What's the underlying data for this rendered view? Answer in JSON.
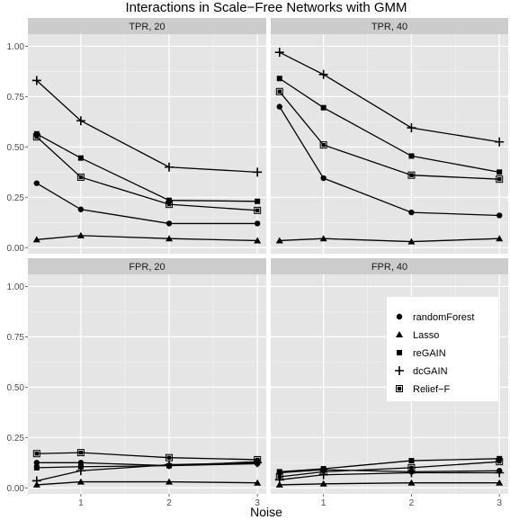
{
  "chart_data": {
    "type": "line",
    "title": "Interactions in Scale−Free Networks with GMM",
    "xlabel": "Noise",
    "ylabel": "",
    "x": [
      0.5,
      1,
      2,
      3
    ],
    "xticks": [
      "1",
      "2",
      "3"
    ],
    "yticks": [
      "0.00",
      "0.25",
      "0.50",
      "0.75",
      "1.00"
    ],
    "xlim": [
      0.4,
      3.1
    ],
    "ylim": [
      -0.03,
      1.06
    ],
    "grid": true,
    "legend_position": "inside-right",
    "legend": [
      {
        "name": "randomForest",
        "marker": "circle"
      },
      {
        "name": "Lasso",
        "marker": "triangle"
      },
      {
        "name": "reGAIN",
        "marker": "square"
      },
      {
        "name": "dcGAIN",
        "marker": "plus"
      },
      {
        "name": "Relief−F",
        "marker": "boxed-square"
      }
    ],
    "panels": [
      {
        "title": "TPR, 20",
        "series": [
          {
            "name": "randomForest",
            "values": [
              0.32,
              0.19,
              0.12,
              0.12
            ]
          },
          {
            "name": "Lasso",
            "values": [
              0.04,
              0.06,
              0.045,
              0.035
            ]
          },
          {
            "name": "reGAIN",
            "values": [
              0.565,
              0.445,
              0.235,
              0.23
            ]
          },
          {
            "name": "dcGAIN",
            "values": [
              0.83,
              0.63,
              0.4,
              0.375
            ]
          },
          {
            "name": "Relief−F",
            "values": [
              0.55,
              0.35,
              0.215,
              0.185
            ]
          }
        ]
      },
      {
        "title": "TPR, 40",
        "series": [
          {
            "name": "randomForest",
            "values": [
              0.7,
              0.345,
              0.175,
              0.16
            ]
          },
          {
            "name": "Lasso",
            "values": [
              0.035,
              0.045,
              0.03,
              0.045
            ]
          },
          {
            "name": "reGAIN",
            "values": [
              0.84,
              0.695,
              0.455,
              0.375
            ]
          },
          {
            "name": "dcGAIN",
            "values": [
              0.97,
              0.86,
              0.595,
              0.525
            ]
          },
          {
            "name": "Relief−F",
            "values": [
              0.775,
              0.51,
              0.36,
              0.34
            ]
          }
        ]
      },
      {
        "title": "FPR, 20",
        "series": [
          {
            "name": "randomForest",
            "values": [
              0.125,
              0.125,
              0.11,
              0.12
            ]
          },
          {
            "name": "Lasso",
            "values": [
              0.015,
              0.03,
              0.03,
              0.025
            ]
          },
          {
            "name": "reGAIN",
            "values": [
              0.1,
              0.105,
              0.11,
              0.13
            ]
          },
          {
            "name": "dcGAIN",
            "values": [
              0.035,
              0.085,
              0.115,
              0.125
            ]
          },
          {
            "name": "Relief−F",
            "values": [
              0.17,
              0.175,
              0.15,
              0.14
            ]
          }
        ]
      },
      {
        "title": "FPR, 40",
        "series": [
          {
            "name": "randomForest",
            "values": [
              0.075,
              0.09,
              0.08,
              0.085
            ]
          },
          {
            "name": "Lasso",
            "values": [
              0.015,
              0.02,
              0.025,
              0.025
            ]
          },
          {
            "name": "reGAIN",
            "values": [
              0.08,
              0.095,
              0.135,
              0.145
            ]
          },
          {
            "name": "dcGAIN",
            "values": [
              0.04,
              0.065,
              0.075,
              0.075
            ]
          },
          {
            "name": "Relief−F",
            "values": [
              0.055,
              0.08,
              0.1,
              0.13
            ]
          }
        ]
      }
    ]
  }
}
